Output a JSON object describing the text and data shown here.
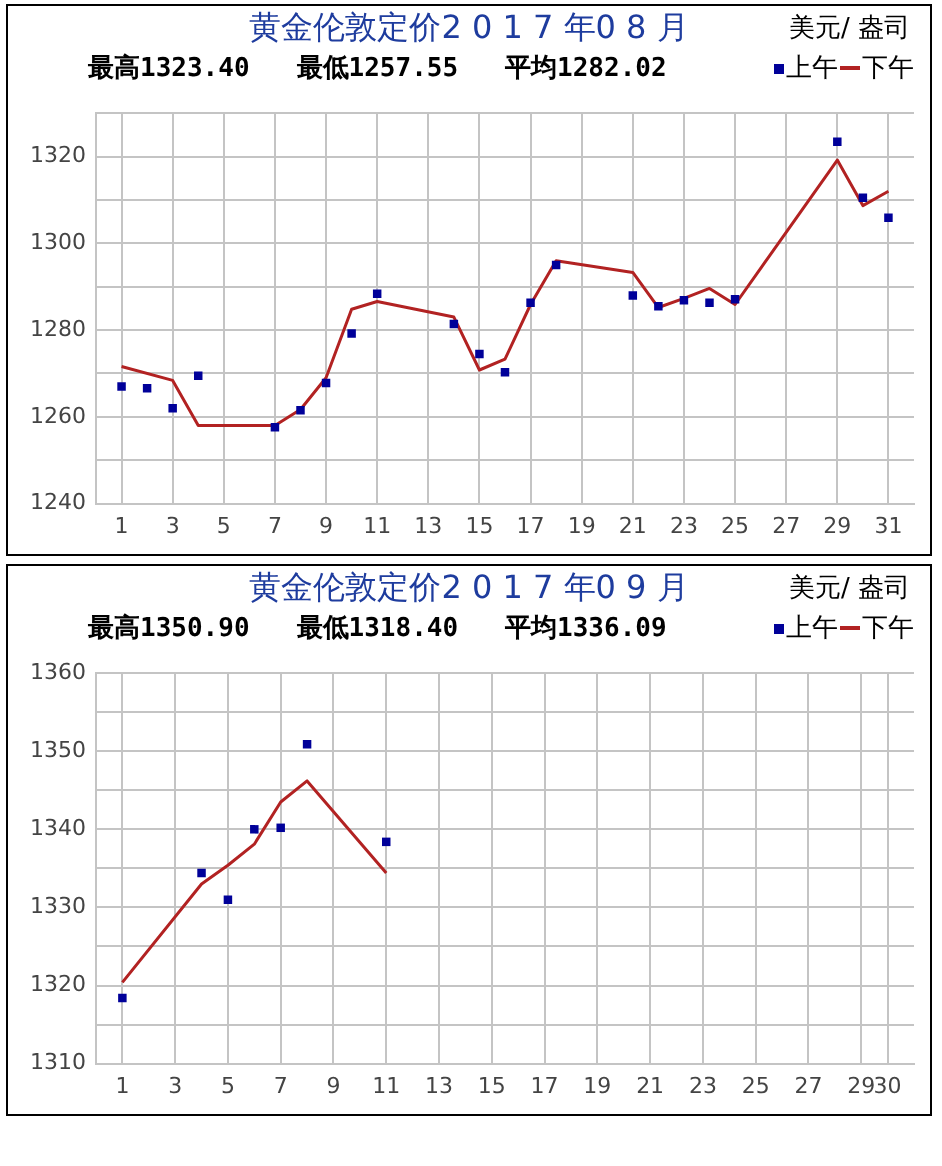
{
  "chart_data": [
    {
      "type": "line",
      "title": "黄金伦敦定价2 0 1 7 年0 8 月",
      "subtitle": "最高1323.40   最低1257.55   平均1282.02",
      "ylabel": "美元/ 盎司",
      "xlim": [
        0,
        32
      ],
      "xticks": [
        1,
        3,
        5,
        7,
        9,
        11,
        13,
        15,
        17,
        19,
        21,
        23,
        25,
        27,
        29,
        31
      ],
      "ylim": [
        1240,
        1330
      ],
      "yticks": [
        1240,
        {
          "value": 1250,
          "label": null
        },
        1260,
        {
          "value": 1270,
          "label": null
        },
        1280,
        {
          "value": 1290,
          "label": null
        },
        1300,
        {
          "value": 1310,
          "label": null
        },
        1320,
        {
          "value": 1330,
          "label": null
        }
      ],
      "grid": true,
      "legend": "top right",
      "series": [
        {
          "name": "上午",
          "type": "scatter",
          "marker": "square",
          "color": "#000099",
          "x": [
            1,
            2,
            3,
            4,
            7,
            8,
            9,
            10,
            11,
            14,
            15,
            16,
            17,
            18,
            21,
            22,
            23,
            24,
            25,
            29,
            30,
            31
          ],
          "values": [
            1267,
            1266.6,
            1262,
            1269.5,
            1257.6,
            1261.5,
            1267.8,
            1279.2,
            1288.4,
            1281.4,
            1274.5,
            1270.3,
            1286.3,
            1295,
            1288,
            1285.5,
            1286.9,
            1286.3,
            1287.1,
            1323.4,
            1310.5,
            1305.9
          ]
        },
        {
          "name": "下午",
          "type": "line",
          "color": "#b22222",
          "x": [
            1,
            3,
            4,
            7,
            8,
            9,
            10,
            11,
            14,
            15,
            16,
            17,
            18,
            21,
            22,
            23,
            24,
            25,
            29,
            30,
            31
          ],
          "values": [
            1271.6,
            1268.4,
            1258,
            1258,
            1261.7,
            1269,
            1284.8,
            1286.6,
            1283,
            1270.8,
            1273.3,
            1285.9,
            1296,
            1293.3,
            1285.2,
            1287.3,
            1289.6,
            1285.9,
            1319.2,
            1308.7,
            1312
          ]
        }
      ]
    },
    {
      "type": "line",
      "title": "黄金伦敦定价2 0 1 7 年0 9 月",
      "subtitle": "最高1350.90   最低1318.40   平均1336.09",
      "ylabel": "美元/ 盎司",
      "xlim": [
        0,
        31
      ],
      "xticks": [
        1,
        3,
        5,
        7,
        9,
        11,
        13,
        15,
        17,
        19,
        21,
        23,
        25,
        27,
        29,
        30
      ],
      "ylim": [
        1310,
        1360
      ],
      "yticks": [
        1310,
        {
          "value": 1315,
          "label": null
        },
        1320,
        {
          "value": 1325,
          "label": null
        },
        1330,
        {
          "value": 1335,
          "label": null
        },
        1340,
        {
          "value": 1345,
          "label": null
        },
        1350,
        {
          "value": 1355,
          "label": null
        },
        1360
      ],
      "grid": true,
      "legend": "top right",
      "series": [
        {
          "name": "上午",
          "type": "scatter",
          "marker": "square",
          "color": "#000099",
          "x": [
            1,
            4,
            5,
            6,
            7,
            8,
            11
          ],
          "values": [
            1318.4,
            1334.4,
            1331,
            1340,
            1340.2,
            1350.9,
            1338.4
          ]
        },
        {
          "name": "下午",
          "type": "line",
          "color": "#b22222",
          "x": [
            1,
            4,
            5,
            6,
            7,
            8,
            11
          ],
          "values": [
            1320.4,
            1333,
            1335.4,
            1338.1,
            1343.5,
            1346.2,
            1334.4
          ]
        }
      ]
    }
  ]
}
